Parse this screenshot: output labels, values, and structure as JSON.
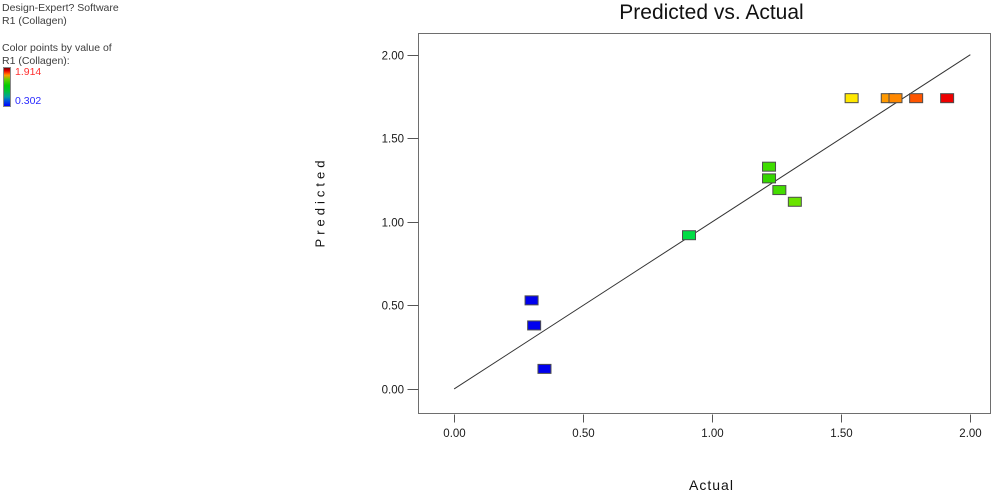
{
  "sidebar": {
    "line1": "Design-Expert? Software",
    "line2": "R1 (Collagen)",
    "caption1": "Color points by value of",
    "caption2": "R1 (Collagen):",
    "colorbar": {
      "max_label": "1.914",
      "min_label": "0.302",
      "max_label_color": "#ff3030",
      "min_label_color": "#2a2aff",
      "gradient_stops": [
        "#7a0000 0%",
        "#e00000 7%",
        "#ff4400 13%",
        "#ff9900 19%",
        "#66cc00 30%",
        "#00cc00 46%",
        "#00c040 62%",
        "#00a0a0 76%",
        "#0055dd 86%",
        "#0000ff 100%"
      ]
    }
  },
  "chart_data": {
    "type": "scatter",
    "title": "Predicted vs. Actual",
    "xlabel": "Actual",
    "ylabel": "Predicted",
    "xlim": [
      -0.14,
      2.08
    ],
    "ylim": [
      -0.15,
      2.13
    ],
    "grid": false,
    "xticks": [
      {
        "value": 0.0,
        "label": "0.00"
      },
      {
        "value": 0.5,
        "label": "0.50"
      },
      {
        "value": 1.0,
        "label": "1.00"
      },
      {
        "value": 1.5,
        "label": "1.50"
      },
      {
        "value": 2.0,
        "label": "2.00"
      }
    ],
    "yticks": [
      {
        "value": 0.0,
        "label": "0.00"
      },
      {
        "value": 0.5,
        "label": "0.50"
      },
      {
        "value": 1.0,
        "label": "1.00"
      },
      {
        "value": 1.5,
        "label": "1.50"
      },
      {
        "value": 2.0,
        "label": "2.00"
      }
    ],
    "identity_line": {
      "x1": 0.0,
      "y1": 0.0,
      "x2": 2.0,
      "y2": 2.0,
      "color": "#333333"
    },
    "marker": {
      "width": 13,
      "height": 9,
      "border_color": "#4d4d4d"
    },
    "color_scale": {
      "variable": "R1 (Collagen)",
      "min": 0.302,
      "max": 1.914
    },
    "points": [
      {
        "actual": 0.3,
        "predicted": 0.53,
        "color": "#0000ee"
      },
      {
        "actual": 0.31,
        "predicted": 0.38,
        "color": "#0000ee"
      },
      {
        "actual": 0.35,
        "predicted": 0.12,
        "color": "#0000ee"
      },
      {
        "actual": 0.91,
        "predicted": 0.92,
        "color": "#00dd44"
      },
      {
        "actual": 1.22,
        "predicted": 1.33,
        "color": "#3fdd00"
      },
      {
        "actual": 1.22,
        "predicted": 1.26,
        "color": "#35d600"
      },
      {
        "actual": 1.26,
        "predicted": 1.19,
        "color": "#44dd00"
      },
      {
        "actual": 1.32,
        "predicted": 1.12,
        "color": "#6ae300"
      },
      {
        "actual": 1.54,
        "predicted": 1.74,
        "color": "#ffe800"
      },
      {
        "actual": 1.68,
        "predicted": 1.74,
        "color": "#ff9900"
      },
      {
        "actual": 1.71,
        "predicted": 1.74,
        "color": "#ff8800"
      },
      {
        "actual": 1.79,
        "predicted": 1.74,
        "color": "#ff5500"
      },
      {
        "actual": 1.91,
        "predicted": 1.74,
        "color": "#ee0000"
      }
    ]
  }
}
